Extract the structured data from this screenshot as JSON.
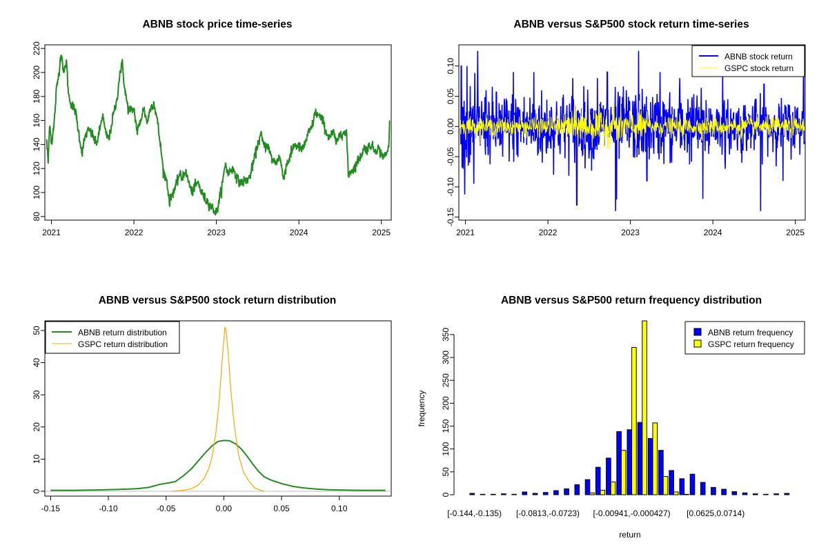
{
  "colors": {
    "price_line": "#228B22",
    "abnb_return": "#0000FF",
    "gspc_return": "#FFFF00",
    "abnb_density": "#228B22",
    "gspc_density": "#FFA500",
    "abnb_bar": "#0000FF",
    "gspc_bar": "#FFFF00",
    "zero_line": "#BEBEBE"
  },
  "chart_data": [
    {
      "id": "price",
      "type": "line",
      "title": "ABNB stock price time-series",
      "xlabel": "",
      "ylabel": "",
      "xlim": [
        2020.92,
        2025.12
      ],
      "ylim": [
        80,
        220
      ],
      "xticks": [
        2021,
        2022,
        2023,
        2024,
        2025
      ],
      "xtick_labels": [
        "2021",
        "2022",
        "2023",
        "2024",
        "2025"
      ],
      "yticks": [
        80,
        100,
        120,
        140,
        160,
        180,
        200,
        220
      ],
      "ytick_labels": [
        "80",
        "100",
        "120",
        "140",
        "160",
        "180",
        "200",
        "220"
      ],
      "series": [
        {
          "name": "ABNB price",
          "anchors": [
            [
              2020.94,
              145
            ],
            [
              2020.96,
              125
            ],
            [
              2020.98,
              160
            ],
            [
              2021.0,
              140
            ],
            [
              2021.03,
              155
            ],
            [
              2021.06,
              185
            ],
            [
              2021.09,
              200
            ],
            [
              2021.12,
              218
            ],
            [
              2021.15,
              198
            ],
            [
              2021.18,
              210
            ],
            [
              2021.21,
              180
            ],
            [
              2021.25,
              172
            ],
            [
              2021.29,
              168
            ],
            [
              2021.33,
              150
            ],
            [
              2021.37,
              133
            ],
            [
              2021.41,
              147
            ],
            [
              2021.45,
              152
            ],
            [
              2021.5,
              148
            ],
            [
              2021.54,
              140
            ],
            [
              2021.58,
              150
            ],
            [
              2021.62,
              165
            ],
            [
              2021.66,
              148
            ],
            [
              2021.7,
              145
            ],
            [
              2021.75,
              165
            ],
            [
              2021.79,
              175
            ],
            [
              2021.83,
              200
            ],
            [
              2021.86,
              207
            ],
            [
              2021.89,
              185
            ],
            [
              2021.93,
              170
            ],
            [
              2021.97,
              168
            ],
            [
              2022.0,
              170
            ],
            [
              2022.04,
              150
            ],
            [
              2022.08,
              160
            ],
            [
              2022.12,
              170
            ],
            [
              2022.16,
              158
            ],
            [
              2022.2,
              170
            ],
            [
              2022.24,
              175
            ],
            [
              2022.28,
              162
            ],
            [
              2022.32,
              140
            ],
            [
              2022.36,
              117
            ],
            [
              2022.4,
              110
            ],
            [
              2022.43,
              92
            ],
            [
              2022.47,
              100
            ],
            [
              2022.51,
              105
            ],
            [
              2022.55,
              115
            ],
            [
              2022.58,
              112
            ],
            [
              2022.62,
              118
            ],
            [
              2022.66,
              110
            ],
            [
              2022.7,
              100
            ],
            [
              2022.74,
              105
            ],
            [
              2022.78,
              108
            ],
            [
              2022.82,
              100
            ],
            [
              2022.86,
              95
            ],
            [
              2022.9,
              92
            ],
            [
              2022.94,
              88
            ],
            [
              2023.0,
              83
            ],
            [
              2023.04,
              95
            ],
            [
              2023.08,
              110
            ],
            [
              2023.11,
              125
            ],
            [
              2023.14,
              115
            ],
            [
              2023.18,
              120
            ],
            [
              2023.22,
              118
            ],
            [
              2023.26,
              110
            ],
            [
              2023.3,
              108
            ],
            [
              2023.35,
              110
            ],
            [
              2023.4,
              112
            ],
            [
              2023.45,
              125
            ],
            [
              2023.5,
              140
            ],
            [
              2023.54,
              148
            ],
            [
              2023.58,
              138
            ],
            [
              2023.62,
              140
            ],
            [
              2023.67,
              128
            ],
            [
              2023.72,
              125
            ],
            [
              2023.77,
              130
            ],
            [
              2023.81,
              112
            ],
            [
              2023.86,
              125
            ],
            [
              2023.9,
              130
            ],
            [
              2023.94,
              140
            ],
            [
              2024.0,
              138
            ],
            [
              2024.04,
              135
            ],
            [
              2024.08,
              142
            ],
            [
              2024.12,
              150
            ],
            [
              2024.16,
              155
            ],
            [
              2024.2,
              167
            ],
            [
              2024.25,
              163
            ],
            [
              2024.29,
              160
            ],
            [
              2024.33,
              150
            ],
            [
              2024.37,
              146
            ],
            [
              2024.42,
              150
            ],
            [
              2024.46,
              140
            ],
            [
              2024.5,
              150
            ],
            [
              2024.54,
              150
            ],
            [
              2024.58,
              147
            ],
            [
              2024.6,
              115
            ],
            [
              2024.63,
              118
            ],
            [
              2024.67,
              120
            ],
            [
              2024.7,
              125
            ],
            [
              2024.75,
              130
            ],
            [
              2024.79,
              137
            ],
            [
              2024.83,
              136
            ],
            [
              2024.87,
              140
            ],
            [
              2024.92,
              135
            ],
            [
              2024.96,
              137
            ],
            [
              2025.0,
              132
            ],
            [
              2025.04,
              130
            ],
            [
              2025.07,
              133
            ],
            [
              2025.09,
              138
            ],
            [
              2025.1,
              160
            ]
          ]
        }
      ]
    },
    {
      "id": "returns",
      "type": "line",
      "title": "ABNB versus S&P500 stock return time-series",
      "xlabel": "",
      "ylabel": "",
      "xlim": [
        2020.92,
        2025.12
      ],
      "ylim": [
        -0.15,
        0.13
      ],
      "xticks": [
        2021,
        2022,
        2023,
        2024,
        2025
      ],
      "xtick_labels": [
        "2021",
        "2022",
        "2023",
        "2024",
        "2025"
      ],
      "yticks": [
        -0.15,
        -0.1,
        -0.05,
        0.0,
        0.05,
        0.1
      ],
      "ytick_labels": [
        "-0.15",
        "-0.10",
        "-0.05",
        "0.00",
        "0.05",
        "0.10"
      ],
      "legend_position": "top-right",
      "series": [
        {
          "name": "ABNB stock return",
          "amplitude": 0.028,
          "spikes": [
            [
              2020.95,
              0.1
            ],
            [
              2020.97,
              -0.07
            ],
            [
              2021.02,
              0.1
            ],
            [
              2021.05,
              -0.06
            ],
            [
              2021.1,
              -0.095
            ],
            [
              2021.15,
              0.125
            ],
            [
              2021.25,
              0.06
            ],
            [
              2021.45,
              -0.05
            ],
            [
              2021.58,
              0.09
            ],
            [
              2021.83,
              0.09
            ],
            [
              2021.93,
              -0.06
            ],
            [
              2022.35,
              -0.13
            ],
            [
              2022.3,
              0.08
            ],
            [
              2022.6,
              0.08
            ],
            [
              2022.72,
              0.09
            ],
            [
              2022.82,
              -0.14
            ],
            [
              2022.83,
              -0.12
            ],
            [
              2022.95,
              0.06
            ],
            [
              2023.1,
              0.125
            ],
            [
              2023.2,
              -0.09
            ],
            [
              2023.36,
              0.09
            ],
            [
              2023.5,
              -0.06
            ],
            [
              2023.6,
              0.08
            ],
            [
              2023.88,
              -0.12
            ],
            [
              2024.12,
              0.09
            ],
            [
              2024.15,
              -0.07
            ],
            [
              2024.35,
              -0.06
            ],
            [
              2024.58,
              -0.14
            ],
            [
              2024.62,
              0.07
            ],
            [
              2024.85,
              -0.09
            ],
            [
              2025.1,
              0.09
            ]
          ]
        },
        {
          "name": "GSPC stock return",
          "amplitude": 0.008,
          "spikes": [
            [
              2022.4,
              0.03
            ],
            [
              2022.45,
              -0.03
            ],
            [
              2022.8,
              0.04
            ],
            [
              2022.85,
              -0.03
            ],
            [
              2023.2,
              0.025
            ]
          ]
        }
      ]
    },
    {
      "id": "density",
      "type": "line",
      "title": "ABNB versus S&P500 stock return distribution",
      "xlabel": "",
      "ylabel": "",
      "xlim": [
        -0.155,
        0.145
      ],
      "ylim": [
        -1.5,
        53
      ],
      "xticks": [
        -0.15,
        -0.1,
        -0.05,
        0.0,
        0.05,
        0.1
      ],
      "xtick_labels": [
        "-0.15",
        "-0.10",
        "-0.05",
        "0.00",
        "0.05",
        "0.10"
      ],
      "yticks": [
        0,
        10,
        20,
        30,
        40,
        50
      ],
      "ytick_labels": [
        "0",
        "10",
        "20",
        "30",
        "40",
        "50"
      ],
      "legend_position": "top-left",
      "series": [
        {
          "name": "ABNB return distribution",
          "points": [
            [
              -0.15,
              0.3
            ],
            [
              -0.13,
              0.3
            ],
            [
              -0.11,
              0.4
            ],
            [
              -0.09,
              0.6
            ],
            [
              -0.075,
              0.8
            ],
            [
              -0.065,
              1.2
            ],
            [
              -0.055,
              2.2
            ],
            [
              -0.048,
              2.6
            ],
            [
              -0.042,
              3.0
            ],
            [
              -0.035,
              4.8
            ],
            [
              -0.028,
              7.0
            ],
            [
              -0.022,
              9.5
            ],
            [
              -0.016,
              12.0
            ],
            [
              -0.01,
              14.2
            ],
            [
              -0.005,
              15.5
            ],
            [
              0.0,
              15.8
            ],
            [
              0.005,
              15.7
            ],
            [
              0.01,
              14.8
            ],
            [
              0.015,
              13.2
            ],
            [
              0.02,
              11.0
            ],
            [
              0.025,
              8.5
            ],
            [
              0.03,
              6.2
            ],
            [
              0.035,
              4.5
            ],
            [
              0.04,
              3.6
            ],
            [
              0.045,
              3.0
            ],
            [
              0.05,
              2.4
            ],
            [
              0.06,
              1.5
            ],
            [
              0.07,
              1.0
            ],
            [
              0.08,
              0.7
            ],
            [
              0.09,
              0.5
            ],
            [
              0.1,
              0.4
            ],
            [
              0.12,
              0.3
            ],
            [
              0.14,
              0.3
            ]
          ]
        },
        {
          "name": "GSPC return distribution",
          "points": [
            [
              -0.045,
              0.0
            ],
            [
              -0.035,
              0.3
            ],
            [
              -0.028,
              0.8
            ],
            [
              -0.022,
              2.0
            ],
            [
              -0.017,
              4.0
            ],
            [
              -0.013,
              7.0
            ],
            [
              -0.01,
              11.0
            ],
            [
              -0.007,
              18.0
            ],
            [
              -0.004,
              28.0
            ],
            [
              -0.002,
              38.0
            ],
            [
              0.0,
              47.0
            ],
            [
              0.001,
              51.0
            ],
            [
              0.002,
              50.0
            ],
            [
              0.004,
              42.0
            ],
            [
              0.006,
              32.0
            ],
            [
              0.008,
              24.0
            ],
            [
              0.01,
              18.0
            ],
            [
              0.013,
              11.0
            ],
            [
              0.017,
              6.0
            ],
            [
              0.022,
              3.0
            ],
            [
              0.027,
              1.0
            ],
            [
              0.032,
              0.3
            ],
            [
              0.035,
              0.0
            ]
          ]
        }
      ]
    },
    {
      "id": "histogram",
      "type": "bar",
      "title": "ABNB versus S&P500 return frequency distribution",
      "xlabel": "return",
      "ylabel": "frequency",
      "ylim": [
        0,
        380
      ],
      "yticks": [
        0,
        50,
        100,
        150,
        200,
        250,
        300,
        350
      ],
      "ytick_labels": [
        "0",
        "50",
        "100",
        "150",
        "200",
        "250",
        "300",
        "350"
      ],
      "xtick_labels": [
        "[-0.144,-0.135)",
        "[-0.0813,-0.0723)",
        "[-0.00941,-0.000427)",
        "[0.0625,0.0714)"
      ],
      "xtick_groups": [
        0,
        7,
        15,
        23
      ],
      "legend_position": "top-right",
      "series": [
        {
          "name": "ABNB return frequency",
          "values": [
            3,
            1,
            1,
            2,
            1,
            6,
            3,
            5,
            9,
            13,
            22,
            33,
            60,
            80,
            138,
            142,
            158,
            123,
            97,
            53,
            35,
            45,
            27,
            16,
            12,
            7,
            4,
            2,
            1,
            2,
            3
          ]
        },
        {
          "name": "GSPC return frequency",
          "values": [
            0,
            0,
            0,
            0,
            0,
            0,
            0,
            0,
            0,
            0,
            0,
            4,
            10,
            28,
            97,
            322,
            400,
            157,
            40,
            6,
            1,
            0,
            0,
            0,
            0,
            0,
            0,
            0,
            0,
            0,
            0
          ]
        }
      ]
    }
  ]
}
